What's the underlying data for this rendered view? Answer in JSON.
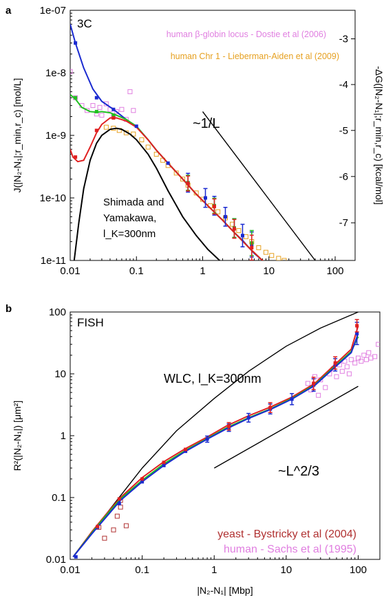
{
  "chart_data": [
    {
      "panel_label": "a",
      "type": "line",
      "inset_title": "3C",
      "xscale": "log",
      "yscale": "log",
      "xlim": [
        0.01,
        200
      ],
      "ylim": [
        1e-11,
        1e-07
      ],
      "x_ticks": [
        0.01,
        0.1,
        1,
        10,
        100
      ],
      "x_tick_labels": [
        "0.01",
        "0.1",
        "1",
        "10",
        "100"
      ],
      "y_ticks": [
        1e-11,
        1e-10,
        1e-09,
        1e-08,
        1e-07
      ],
      "y_tick_labels": [
        "1e-11",
        "1e-10",
        "1e-9",
        "1e-8",
        "1e-07"
      ],
      "ylabel": "J(|N₂-N₁|;r_min,r_c) [mol/L]",
      "y2label": "-ΔG(|N₂-N₁|;r_min,r_c) [kcal/mol]",
      "y2_ticks": [
        -3,
        -4,
        -5,
        -6,
        -7
      ],
      "y2_tick_labels": [
        "-3",
        "-4",
        "-5",
        "-6",
        "-7"
      ],
      "y2_tick_positions_J": [
        3.5e-08,
        6.5e-09,
        1.2e-09,
        2.2e-10,
        4e-11
      ],
      "grid": false,
      "legend_position": "top-right",
      "legend": [
        {
          "label": "human β-globin locus - Dostie et al (2006)",
          "color": "#e07ee0",
          "marker": "open-square"
        },
        {
          "label": "human Chr 1 - Lieberman-Aiden et al (2009)",
          "color": "#e6a020",
          "marker": "open-square"
        }
      ],
      "annotations": {
        "inverse_L": "~1/L",
        "shimada": [
          "Shimada and",
          "Yamakawa,",
          "l_K=300nm"
        ]
      },
      "reference_lines": [
        {
          "label": "~1/L",
          "x": [
            1,
            50
          ],
          "y": [
            2.4e-09,
            1e-11
          ]
        }
      ],
      "series": [
        {
          "color": "#1a2ad0",
          "x": [
            0.01,
            0.012,
            0.016,
            0.022,
            0.03,
            0.045,
            0.07,
            0.1,
            0.15,
            0.2,
            0.3,
            0.5,
            0.8,
            1.2,
            2,
            3,
            4,
            5,
            6,
            8,
            10,
            12
          ],
          "y": [
            6e-08,
            3e-08,
            1.2e-08,
            5.5e-09,
            3.5e-09,
            2.6e-09,
            1.8e-09,
            1.4e-09,
            8.5e-10,
            5.8e-10,
            3.6e-10,
            2e-10,
            1.15e-10,
            7.5e-11,
            4.4e-11,
            2.8e-11,
            2.1e-11,
            1.6e-11,
            1.3e-11,
            1e-11,
            9e-12,
            8e-12
          ]
        },
        {
          "color": "#20c020",
          "x": [
            0.01,
            0.012,
            0.015,
            0.02,
            0.025,
            0.03,
            0.04,
            0.05,
            0.07,
            0.1,
            0.15,
            0.2,
            0.3,
            0.5,
            0.8,
            1.2,
            2,
            3,
            5,
            8,
            10
          ],
          "y": [
            4.5e-09,
            3.8e-09,
            2.8e-09,
            2.4e-09,
            2.35e-09,
            2.4e-09,
            2.3e-09,
            2.1e-09,
            1.8e-09,
            1.4e-09,
            8.5e-10,
            5.8e-10,
            3.6e-10,
            2e-10,
            1.15e-10,
            7.5e-11,
            4.4e-11,
            2.8e-11,
            1.6e-11,
            1e-11,
            9e-12
          ]
        },
        {
          "color": "#e02020",
          "x": [
            0.01,
            0.011,
            0.013,
            0.016,
            0.02,
            0.025,
            0.03,
            0.04,
            0.05,
            0.07,
            0.1,
            0.15,
            0.2,
            0.3,
            0.5,
            0.8,
            1.2,
            2,
            3,
            5,
            8,
            10
          ],
          "y": [
            6e-10,
            4.5e-10,
            3.8e-10,
            4e-10,
            6.5e-10,
            1.1e-09,
            1.5e-09,
            1.9e-09,
            1.9e-09,
            1.7e-09,
            1.35e-09,
            8.5e-10,
            5.8e-10,
            3.6e-10,
            2e-10,
            1.15e-10,
            7.5e-11,
            4.4e-11,
            2.8e-11,
            1.6e-11,
            1e-11,
            9e-12
          ]
        },
        {
          "color": "#000000",
          "x": [
            0.0115,
            0.0135,
            0.016,
            0.02,
            0.025,
            0.03,
            0.04,
            0.05,
            0.06,
            0.08,
            0.1,
            0.15,
            0.2,
            0.3,
            0.5,
            0.8,
            1.2,
            1.8
          ],
          "y": [
            1e-11,
            4e-11,
            1.4e-10,
            4e-10,
            7.5e-10,
            1e-09,
            1.25e-09,
            1.3e-09,
            1.25e-09,
            1.05e-09,
            8.5e-10,
            5e-10,
            3e-10,
            1.3e-10,
            5e-11,
            2.5e-11,
            1.5e-11,
            1e-11
          ]
        }
      ],
      "markers": [
        {
          "color": "#1a2ad0",
          "x": [
            0.012,
            0.025,
            0.045,
            0.1,
            0.3,
            0.6,
            1.1,
            1.5,
            2.2,
            3,
            4,
            5.5
          ],
          "y": [
            3e-08,
            4e-09,
            2.6e-09,
            1.4e-09,
            3.6e-10,
            1.75e-10,
            1e-10,
            7.5e-11,
            5e-11,
            3.3e-11,
            2.5e-11,
            1.8e-11
          ],
          "err": [
            0,
            0,
            0,
            0,
            0,
            0.15,
            0.15,
            0.15,
            0.15,
            0.15,
            0.18,
            0.2
          ]
        },
        {
          "color": "#20c020",
          "x": [
            0.012,
            0.025,
            0.045,
            0.6,
            1.5,
            3,
            5.5
          ],
          "y": [
            4e-09,
            2.4e-09,
            2.1e-09,
            1.75e-10,
            7.5e-11,
            3.3e-11,
            1.9e-11
          ],
          "err": [
            0,
            0,
            0,
            0.12,
            0.12,
            0.15,
            0.2
          ]
        },
        {
          "color": "#e02020",
          "x": [
            0.012,
            0.025,
            0.045,
            0.6,
            1.5,
            3,
            5.5
          ],
          "y": [
            4.5e-10,
            1.2e-09,
            1.9e-09,
            1.7e-10,
            7.3e-11,
            3.2e-11,
            1.6e-11
          ],
          "err": [
            0,
            0,
            0,
            0.12,
            0.12,
            0.15,
            0.2
          ]
        }
      ],
      "scatter": [
        {
          "name": "human β-globin locus - Dostie et al (2006)",
          "color": "#e07ee0",
          "x": [
            0.01,
            0.012,
            0.015,
            0.018,
            0.022,
            0.025,
            0.028,
            0.03,
            0.035,
            0.04,
            0.045,
            0.05,
            0.06,
            0.07,
            0.08,
            0.09
          ],
          "y": [
            1.05e-08,
            4e-09,
            3e-09,
            2.5e-09,
            3e-09,
            2.2e-09,
            2.8e-09,
            2.1e-09,
            3.2e-09,
            2.6e-09,
            2e-09,
            2.4e-09,
            2.6e-09,
            1.8e-09,
            5e-09,
            2.5e-09
          ]
        },
        {
          "name": "human Chr 1 - Lieberman-Aiden et al (2009)",
          "color": "#e6a020",
          "x": [
            0.035,
            0.045,
            0.055,
            0.07,
            0.09,
            0.12,
            0.15,
            0.2,
            0.25,
            0.3,
            0.4,
            0.5,
            0.6,
            0.8,
            1,
            1.3,
            1.7,
            2.2,
            2.8,
            3.5,
            4.5,
            5.5,
            7,
            9,
            11,
            14,
            17
          ],
          "y": [
            1.35e-09,
            1.3e-09,
            1.2e-09,
            1.1e-09,
            1.05e-09,
            8.5e-10,
            6.5e-10,
            5e-10,
            4e-10,
            3.3e-10,
            2.5e-10,
            2e-10,
            1.6e-10,
            1.2e-10,
            9.5e-11,
            7.5e-11,
            6e-11,
            4.8e-11,
            3.8e-11,
            3e-11,
            2.4e-11,
            2e-11,
            1.6e-11,
            1.35e-11,
            1.2e-11,
            1.08e-11,
            1e-11
          ]
        }
      ]
    },
    {
      "panel_label": "b",
      "type": "line",
      "inset_title": "FISH",
      "xscale": "log",
      "yscale": "log",
      "xlim": [
        0.01,
        200
      ],
      "ylim": [
        0.01,
        100
      ],
      "x_ticks": [
        0.01,
        0.1,
        1,
        10,
        100
      ],
      "x_tick_labels": [
        "0.01",
        "0.1",
        "1",
        "10",
        "100"
      ],
      "y_ticks": [
        0.01,
        0.1,
        1,
        10,
        100
      ],
      "y_tick_labels": [
        "0.01",
        "0.1",
        "1",
        "10",
        "100"
      ],
      "xlabel": "|N₂-N₁| [Mbp]",
      "ylabel": "R²(|N₂-N₁|) [μm²]",
      "grid": false,
      "legend_position": "bottom-right",
      "legend": [
        {
          "label": "yeast - Bystricky et al (2004)",
          "color": "#b03030",
          "marker": "open-square"
        },
        {
          "label": "human - Sachs et al (1995)",
          "color": "#e07ee0",
          "marker": "open-square"
        }
      ],
      "annotations": {
        "wlc": "WLC, l_K=300nm",
        "power_law": "~L^2/3"
      },
      "reference_lines": [
        {
          "label": "WLC, l_K=300nm",
          "x": [
            0.011,
            0.03,
            0.1,
            0.3,
            1,
            3,
            10,
            30,
            100,
            200
          ],
          "y": [
            0.011,
            0.05,
            0.3,
            1.2,
            4,
            11,
            28,
            55,
            100,
            130
          ]
        },
        {
          "label": "~L^2/3",
          "x": [
            1,
            100
          ],
          "y": [
            0.3,
            6.3
          ]
        }
      ],
      "series": [
        {
          "color": "#e02020",
          "x": [
            0.011,
            0.02,
            0.03,
            0.05,
            0.1,
            0.2,
            0.4,
            0.8,
            1.5,
            3,
            6,
            12,
            25,
            50,
            80,
            100
          ],
          "y": [
            0.011,
            0.028,
            0.05,
            0.1,
            0.21,
            0.38,
            0.62,
            0.95,
            1.45,
            2.1,
            2.9,
            4.2,
            7,
            15,
            25,
            60
          ]
        },
        {
          "color": "#20c020",
          "x": [
            0.011,
            0.02,
            0.03,
            0.05,
            0.1,
            0.2,
            0.4,
            0.8,
            1.5,
            3,
            6,
            12,
            25,
            50,
            80,
            100
          ],
          "y": [
            0.011,
            0.027,
            0.048,
            0.095,
            0.19,
            0.35,
            0.58,
            0.9,
            1.35,
            1.95,
            2.7,
            4,
            6.7,
            14,
            23,
            40
          ]
        },
        {
          "color": "#1a2ad0",
          "x": [
            0.011,
            0.02,
            0.03,
            0.05,
            0.1,
            0.2,
            0.4,
            0.8,
            1.5,
            3,
            6,
            12,
            25,
            50,
            80,
            100
          ],
          "y": [
            0.011,
            0.026,
            0.045,
            0.09,
            0.18,
            0.33,
            0.56,
            0.88,
            1.3,
            1.9,
            2.65,
            3.9,
            6.5,
            13.5,
            22,
            45
          ]
        }
      ],
      "markers": [
        {
          "color": "#1a2ad0",
          "x": [
            0.012,
            0.024,
            0.048,
            0.1,
            0.2,
            0.4,
            0.8,
            1.6,
            3,
            6,
            12,
            24,
            48,
            96
          ],
          "y": [
            0.011,
            0.033,
            0.08,
            0.18,
            0.33,
            0.56,
            0.88,
            1.35,
            1.95,
            2.7,
            3.9,
            6.6,
            14,
            45
          ],
          "err": [
            0,
            0,
            0,
            0,
            0,
            0,
            0.05,
            0.06,
            0.07,
            0.08,
            0.09,
            0.1,
            0.1,
            0.18
          ]
        },
        {
          "color": "#e02020",
          "x": [
            0.024,
            0.048,
            0.1,
            0.2,
            0.4,
            1.6,
            6,
            24,
            48,
            96
          ],
          "y": [
            0.034,
            0.095,
            0.2,
            0.37,
            0.6,
            1.42,
            2.85,
            7,
            15,
            60
          ],
          "err": [
            0,
            0,
            0,
            0,
            0,
            0.06,
            0.08,
            0.1,
            0.1,
            0.1
          ]
        }
      ],
      "scatter": [
        {
          "name": "yeast - Bystricky et al (2004)",
          "color": "#b03030",
          "x": [
            0.025,
            0.03,
            0.04,
            0.045,
            0.05,
            0.05,
            0.06
          ],
          "y": [
            0.033,
            0.022,
            0.03,
            0.05,
            0.07,
            0.09,
            0.035
          ]
        },
        {
          "name": "human - Sachs et al (1995)",
          "color": "#e07ee0",
          "x": [
            20,
            22,
            25,
            28,
            30,
            35,
            40,
            45,
            50,
            55,
            60,
            65,
            70,
            75,
            80,
            90,
            100,
            110,
            120,
            130,
            140,
            150,
            170,
            190
          ],
          "y": [
            7,
            5.5,
            9,
            4.5,
            8,
            6,
            10,
            12,
            9,
            14,
            11,
            16,
            13,
            10,
            17,
            15,
            18,
            16,
            20,
            17,
            22,
            18,
            19,
            30
          ]
        }
      ]
    }
  ]
}
